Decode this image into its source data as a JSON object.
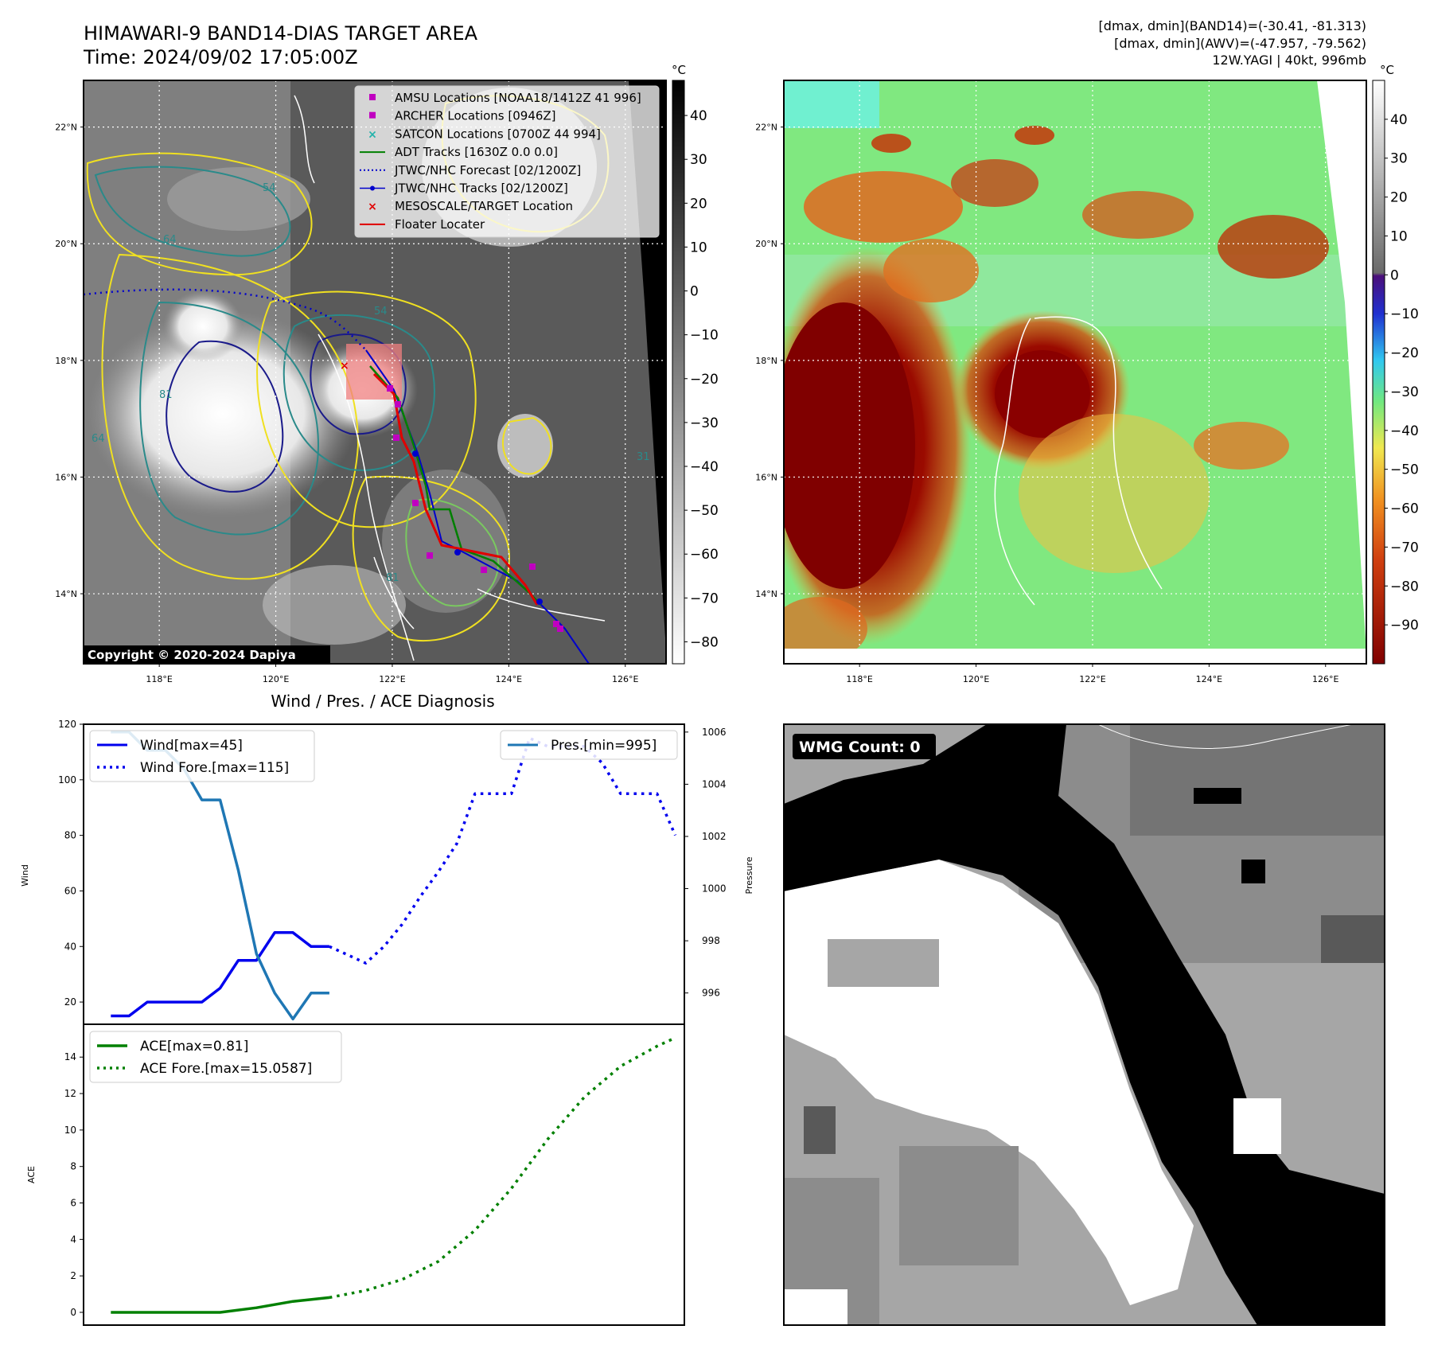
{
  "header": {
    "title_line1": "HIMAWARI-9 BAND14-DIAS TARGET AREA",
    "title_line2": "Time: 2024/09/02 17:05:00Z",
    "info_line1": "[dmax, dmin](BAND14)=(-30.41, -81.313)",
    "info_line2": "[dmax, dmin](AWV)=(-47.957, -79.562)",
    "info_line3": "12W.YAGI | 40kt, 996mb"
  },
  "map": {
    "lat_labels": [
      "22°N",
      "20°N",
      "18°N",
      "16°N",
      "14°N"
    ],
    "lat_values": [
      22,
      20,
      18,
      16,
      14
    ],
    "lon_labels": [
      "118°E",
      "120°E",
      "122°E",
      "124°E",
      "126°E"
    ],
    "lon_values": [
      118,
      120,
      122,
      124,
      126
    ],
    "lon_range": [
      116.7,
      126.7
    ],
    "lat_range": [
      12.8,
      22.8
    ],
    "copyright": "Copyright © 2020-2024 Dapiya",
    "colorbar_unit": "°C",
    "colorbar_ticks": [
      40,
      30,
      20,
      10,
      0,
      -10,
      -20,
      -30,
      -40,
      -50,
      -60,
      -70,
      -80
    ],
    "colorbar_range": [
      -85,
      48
    ],
    "contour_labels": [
      "54",
      "64",
      "81",
      "31",
      "54",
      "64",
      "81"
    ],
    "legend": [
      {
        "label": "AMSU Locations [NOAA18/1412Z 41 996]",
        "marker": "square",
        "color": "#c000c0"
      },
      {
        "label": "ARCHER Locations [0946Z]",
        "marker": "square",
        "color": "#c000c0"
      },
      {
        "label": "SATCON Locations [0700Z 44 994]",
        "marker": "x",
        "color": "#20b2aa"
      },
      {
        "label": "ADT Tracks [1630Z 0.0 0.0]",
        "marker": "line",
        "color": "#008000"
      },
      {
        "label": "JTWC/NHC Forecast [02/1200Z]",
        "marker": "dotted",
        "color": "#0000cc"
      },
      {
        "label": "JTWC/NHC Tracks [02/1200Z]",
        "marker": "line-dot",
        "color": "#0000cc"
      },
      {
        "label": "MESOSCALE/TARGET Location",
        "marker": "x",
        "color": "#e00000"
      },
      {
        "label": "Floater Locater",
        "marker": "line",
        "color": "#e00000"
      }
    ]
  },
  "awv": {
    "colorbar_unit": "°C",
    "colorbar_ticks": [
      40,
      30,
      20,
      10,
      0,
      -10,
      -20,
      -30,
      -40,
      -50,
      -60,
      -70,
      -80,
      -90
    ],
    "colorbar_range": [
      -100,
      50
    ]
  },
  "wmg": {
    "label": "WMG Count: 0"
  },
  "chart_data": [
    {
      "type": "line",
      "title": "Wind / Pres. / ACE Diagnosis",
      "ylabel": "Wind",
      "y2label": "Pressure",
      "ylim": [
        12,
        120
      ],
      "y2lim": [
        994.8,
        1006.3
      ],
      "xlim": [
        -1.5,
        31.5
      ],
      "yticks": [
        20,
        40,
        60,
        80,
        100,
        120
      ],
      "y2ticks": [
        996,
        998,
        1000,
        1002,
        1004,
        1006
      ],
      "legend_left": [
        "Wind[max=45]",
        "Wind Fore.[max=115]"
      ],
      "legend_right": [
        "Pres.[min=995]"
      ],
      "series": [
        {
          "name": "Wind[max=45]",
          "axis": "left",
          "style": "solid",
          "color": "#0000ee",
          "x": [
            0,
            1,
            2,
            3,
            4,
            5,
            6,
            7,
            8,
            9,
            10,
            11,
            12
          ],
          "values": [
            15,
            15,
            20,
            20,
            20,
            20,
            25,
            35,
            35,
            45,
            45,
            40,
            40
          ]
        },
        {
          "name": "Wind Fore.[max=115]",
          "axis": "left",
          "style": "dotted",
          "color": "#0000ee",
          "x": [
            12,
            13,
            14,
            15,
            16,
            17,
            18,
            19,
            20,
            21,
            22,
            23,
            24,
            25,
            26,
            27,
            28,
            29,
            30,
            31
          ],
          "values": [
            40,
            37,
            34,
            40,
            48,
            58,
            67,
            77,
            95,
            95,
            95,
            115,
            112,
            112,
            112,
            106,
            95,
            95,
            95,
            80
          ]
        },
        {
          "name": "Pres.[min=995]",
          "axis": "right",
          "style": "solid",
          "color": "#1f77b4",
          "x": [
            0,
            1,
            2,
            3,
            4,
            5,
            6,
            7,
            8,
            9,
            10,
            11,
            12
          ],
          "values": [
            1006,
            1006,
            1005.3,
            1005.3,
            1004.6,
            1003.4,
            1003.4,
            1000.7,
            997.5,
            996,
            995,
            996,
            996
          ]
        }
      ]
    },
    {
      "type": "line",
      "ylabel": "ACE",
      "ylim": [
        -0.7,
        15.8
      ],
      "xlim": [
        -1.5,
        31.5
      ],
      "yticks": [
        0,
        2,
        4,
        6,
        8,
        10,
        12,
        14
      ],
      "legend_left": [
        "ACE[max=0.81]",
        "ACE Fore.[max=15.0587]"
      ],
      "series": [
        {
          "name": "ACE[max=0.81]",
          "style": "solid",
          "color": "#008000",
          "x": [
            0,
            2,
            4,
            6,
            8,
            10,
            12
          ],
          "values": [
            0,
            0,
            0,
            0,
            0.25,
            0.6,
            0.81
          ]
        },
        {
          "name": "ACE Fore.[max=15.0587]",
          "style": "dotted",
          "color": "#008000",
          "x": [
            12,
            14,
            16,
            18,
            20,
            22,
            24,
            26,
            28,
            30,
            31
          ],
          "values": [
            0.81,
            1.2,
            1.8,
            2.8,
            4.5,
            6.8,
            9.5,
            11.8,
            13.5,
            14.6,
            15.06
          ]
        }
      ]
    }
  ]
}
